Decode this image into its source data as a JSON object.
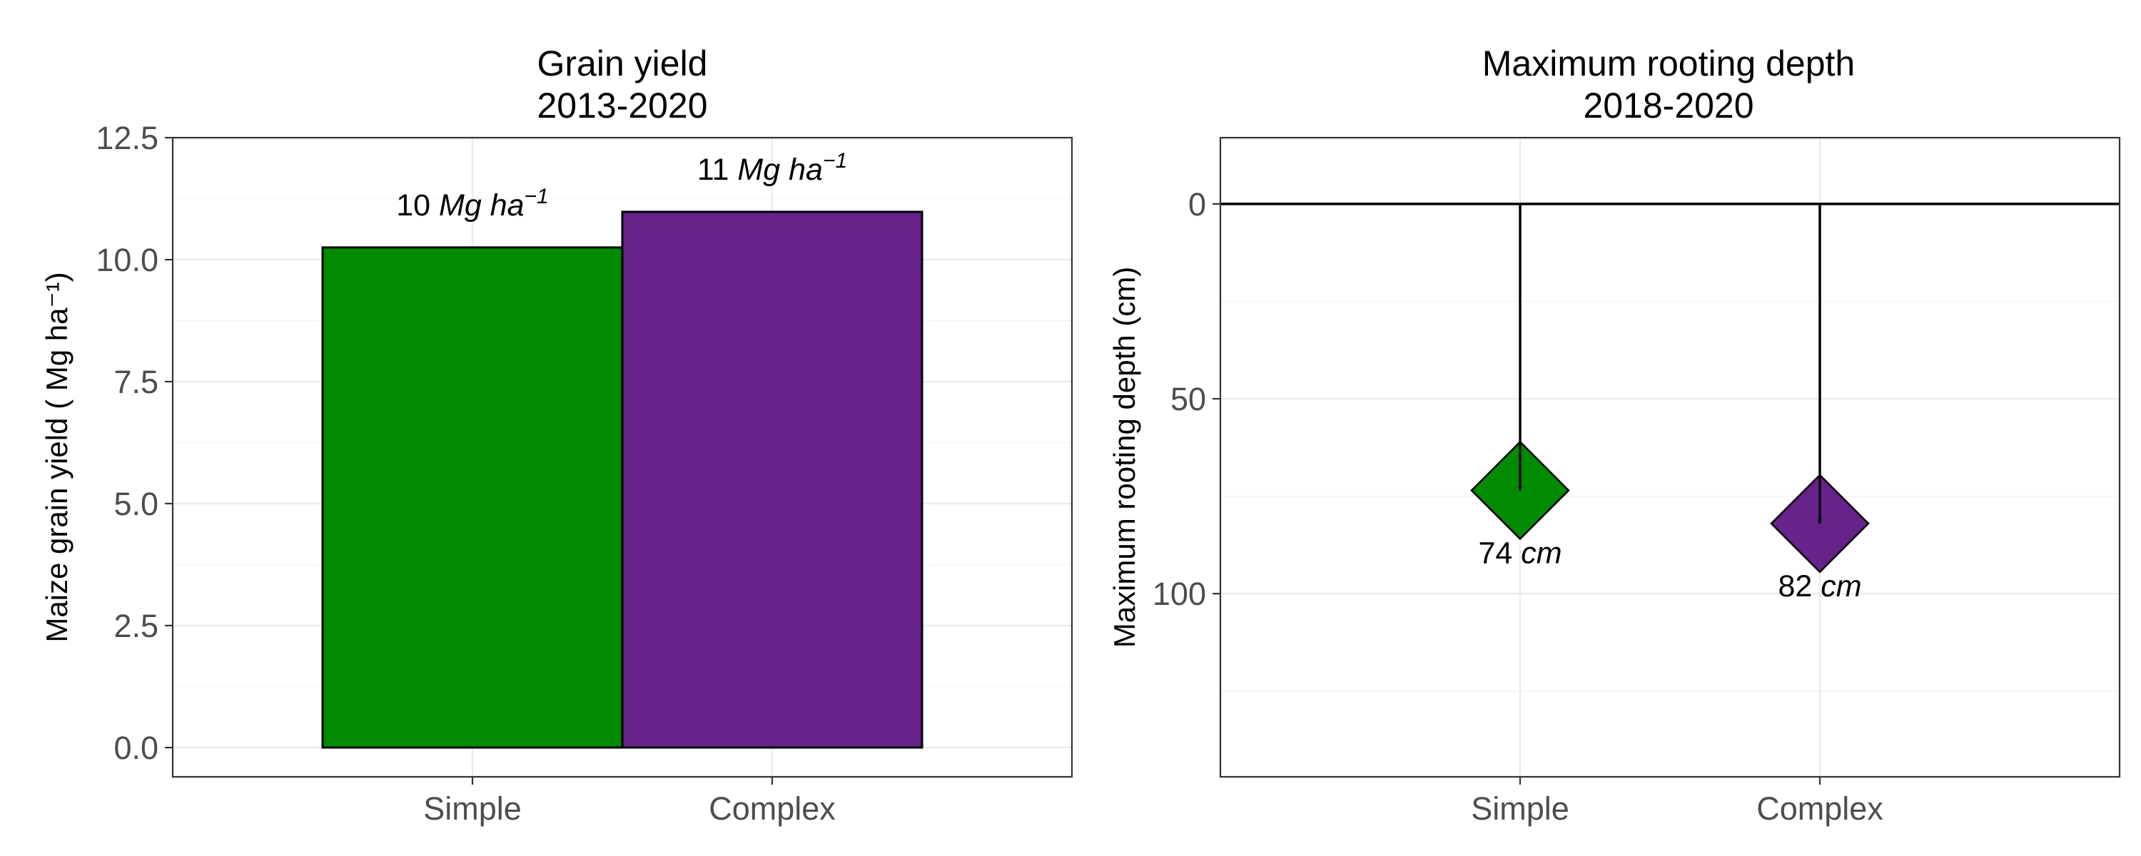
{
  "chart_data": [
    {
      "type": "bar",
      "title": [
        "Grain yield",
        "2013-2020"
      ],
      "ylabel": "Maize grain yield ( Mg ha⁻¹)",
      "xlabel": "",
      "categories": [
        "Simple",
        "Complex"
      ],
      "values": [
        10.25,
        10.98
      ],
      "colors": [
        "#008b00",
        "#68228b"
      ],
      "data_labels": [
        {
          "number": "10",
          "unit": "Mg ha",
          "exp": "−1"
        },
        {
          "number": "11",
          "unit": "Mg ha",
          "exp": "−1"
        }
      ],
      "ylim": [
        -0.6,
        12.5
      ],
      "yticks": [
        0.0,
        2.5,
        5.0,
        7.5,
        10.0,
        12.5
      ],
      "ytick_labels": [
        "0.0",
        "2.5",
        "5.0",
        "7.5",
        "10.0",
        "12.5"
      ],
      "grid": true,
      "legend": "none"
    },
    {
      "type": "scatter",
      "title": [
        "Maximum rooting depth",
        "2018-2020"
      ],
      "ylabel": "Maximum rooting depth (cm)",
      "xlabel": "",
      "categories": [
        "Simple",
        "Complex"
      ],
      "values": [
        73.5,
        82
      ],
      "marker": "diamond",
      "arrows_from": 0,
      "colors": [
        "#008b00",
        "#68228b"
      ],
      "data_labels": [
        {
          "number": "74",
          "unit": "cm"
        },
        {
          "number": "82",
          "unit": "cm"
        }
      ],
      "ylim": [
        -17,
        147
      ],
      "y_reversed": true,
      "yticks": [
        0,
        50,
        100
      ],
      "ytick_labels": [
        "0",
        "50",
        "100"
      ],
      "reference_line": 0,
      "grid": true,
      "legend": "none"
    }
  ]
}
